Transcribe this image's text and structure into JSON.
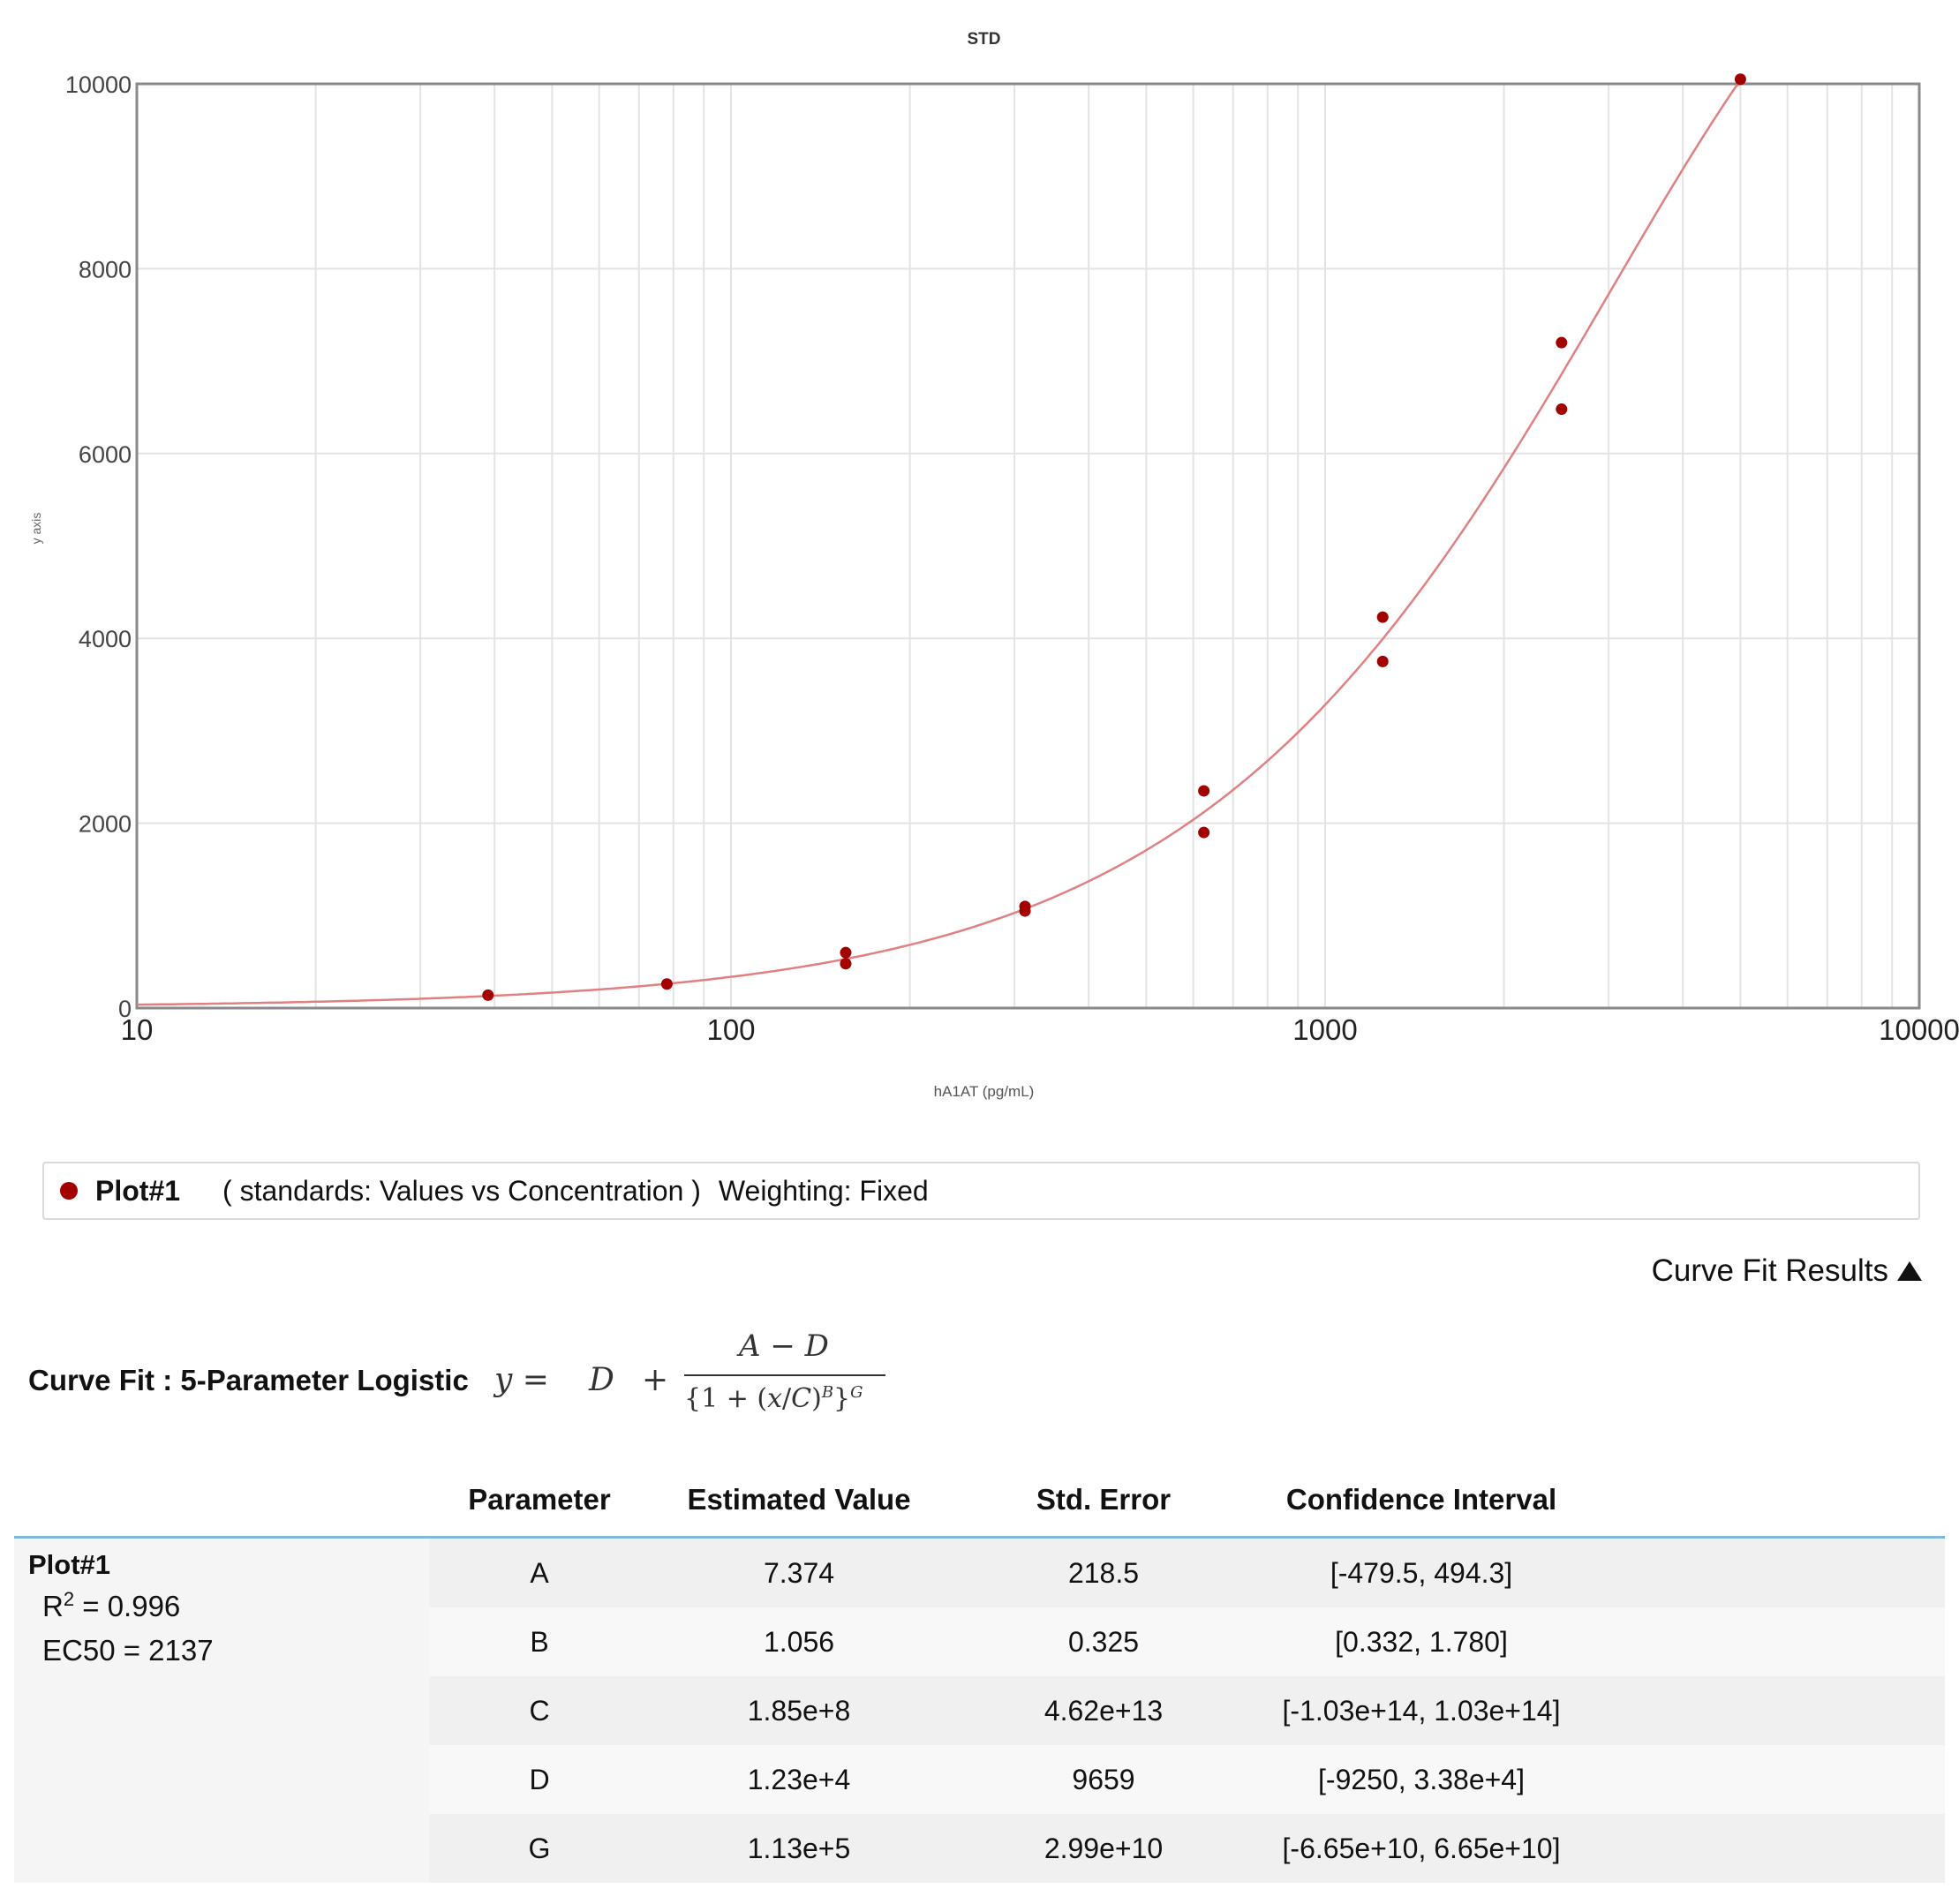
{
  "chart_data": {
    "type": "scatter",
    "title": "STD",
    "xlabel": "hA1AT (pg/mL)",
    "ylabel": "y axis",
    "xscale": "log",
    "xlim": [
      10,
      10000
    ],
    "ylim": [
      0,
      10000
    ],
    "grid": true,
    "x_ticks": [
      {
        "value": 10,
        "label": "10"
      },
      {
        "value": 100,
        "label": "100"
      },
      {
        "value": 1000,
        "label": "1000"
      },
      {
        "value": 10000,
        "label": "10000"
      }
    ],
    "y_ticks": [
      {
        "value": 0,
        "label": "0"
      },
      {
        "value": 2000,
        "label": "2000"
      },
      {
        "value": 4000,
        "label": "4000"
      },
      {
        "value": 6000,
        "label": "6000"
      },
      {
        "value": 8000,
        "label": "8000"
      },
      {
        "value": 10000,
        "label": "10000"
      }
    ],
    "series": [
      {
        "name": "Plot#1",
        "color": "#a30000",
        "points": [
          {
            "x": 39,
            "y": 140
          },
          {
            "x": 78,
            "y": 260
          },
          {
            "x": 156,
            "y": 480
          },
          {
            "x": 156,
            "y": 600
          },
          {
            "x": 312.5,
            "y": 1050
          },
          {
            "x": 312.5,
            "y": 1100
          },
          {
            "x": 625,
            "y": 1900
          },
          {
            "x": 625,
            "y": 2350
          },
          {
            "x": 1250,
            "y": 3750
          },
          {
            "x": 1250,
            "y": 4230
          },
          {
            "x": 2500,
            "y": 6480
          },
          {
            "x": 2500,
            "y": 7200
          },
          {
            "x": 5000,
            "y": 10050
          }
        ]
      }
    ],
    "fit": {
      "model": "5PL",
      "color": "#e08080",
      "A": 7.374,
      "B": 1.056,
      "C": 185000000,
      "D": 12300,
      "G": 113000
    }
  },
  "legend": {
    "plot_name": "Plot#1",
    "description": "( standards: Values vs Concentration )",
    "weighting": "Weighting: Fixed"
  },
  "results_toggle": "Curve Fit Results",
  "curve_fit": {
    "title": "Curve Fit : 5-Parameter Logistic"
  },
  "table": {
    "headers": [
      "Parameter",
      "Estimated Value",
      "Std. Error",
      "Confidence Interval"
    ],
    "plot_name": "Plot#1",
    "r2_label": "R",
    "r2_sup": "2",
    "r2_value": "= 0.996",
    "ec50": "EC50 = 2137",
    "rows": [
      [
        "A",
        "7.374",
        "218.5",
        "[-479.5, 494.3]"
      ],
      [
        "B",
        "1.056",
        "0.325",
        "[0.332, 1.780]"
      ],
      [
        "C",
        "1.85e+8",
        "4.62e+13",
        "[-1.03e+14, 1.03e+14]"
      ],
      [
        "D",
        "1.23e+4",
        "9659",
        "[-9250, 3.38e+4]"
      ],
      [
        "G",
        "1.13e+5",
        "2.99e+10",
        "[-6.65e+10, 6.65e+10]"
      ]
    ]
  }
}
